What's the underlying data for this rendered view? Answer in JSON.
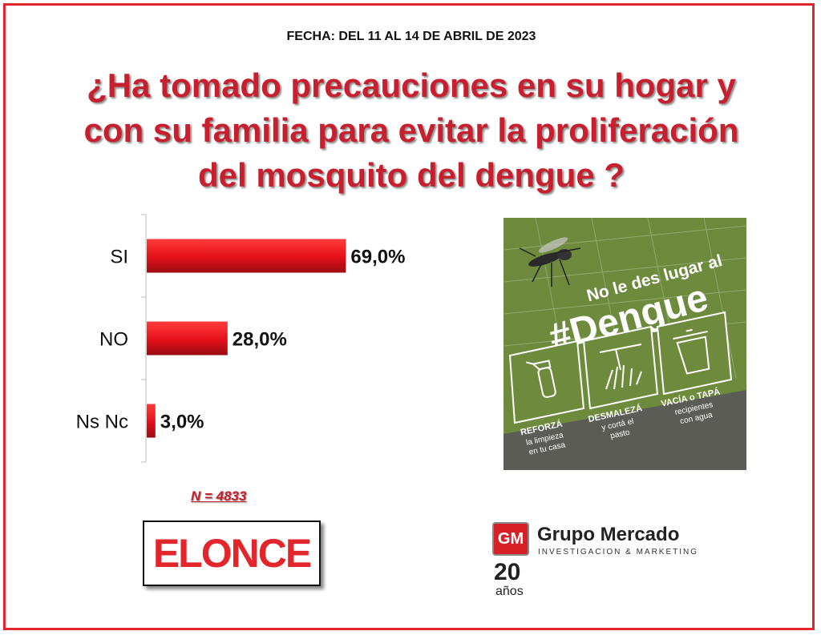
{
  "header": {
    "date": "FECHA: DEL 11 AL 14 DE ABRIL DE 2023",
    "question_lines": [
      "¿Ha tomado precauciones en su hogar y",
      "con su familia para evitar la proliferación",
      "del mosquito del dengue ?"
    ]
  },
  "chart_data": {
    "type": "bar",
    "orientation": "horizontal",
    "categories": [
      "SI",
      "NO",
      "Ns Nc"
    ],
    "values": [
      69.0,
      28.0,
      3.0
    ],
    "value_labels": [
      "69,0%",
      "28,0%",
      "3,0%"
    ],
    "bar_color": "#e3262c",
    "title": "",
    "xlabel": "",
    "ylabel": "",
    "xlim": [
      0,
      100
    ],
    "grid": false
  },
  "sample": {
    "label": "N = 4833"
  },
  "poster": {
    "tagline": "No le des lugar al",
    "hashtag": "#Dengue",
    "tips": [
      {
        "title": "REFORZÁ",
        "lines": [
          "la limpieza",
          "en tu casa"
        ],
        "icon": "spray-bottle-icon"
      },
      {
        "title": "DESMALEZÁ",
        "lines": [
          "y cortá el",
          "pasto"
        ],
        "icon": "grass-trimmer-icon"
      },
      {
        "title": "VACÍA o TAPÁ",
        "lines": [
          "recipientes",
          "con agua"
        ],
        "icon": "bucket-icon"
      }
    ],
    "colors": {
      "green": "#6e8b3d",
      "dark": "#5c5c56"
    }
  },
  "logos": {
    "elonce": "ELONCE",
    "gm_mark": "GM",
    "gm_name": "Grupo Mercado",
    "gm_sub": "INVESTIGACION & MARKETING",
    "gm_years": "20",
    "gm_anos": "años"
  }
}
